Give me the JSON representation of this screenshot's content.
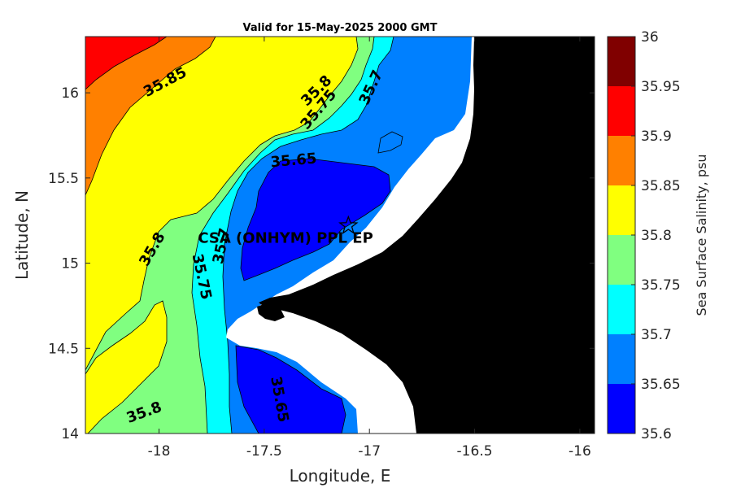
{
  "chart_data": {
    "type": "heatmap",
    "title": "Valid for 15-May-2025 2000 GMT",
    "xlabel": "Longitude, E",
    "ylabel": "Latitude, N",
    "xlim": [
      -18.35,
      -15.93
    ],
    "ylim": [
      14.0,
      16.33
    ],
    "x_ticks": [
      -18,
      -17.5,
      -17,
      -16.5,
      -16
    ],
    "x_tick_labels": [
      "-18",
      "-17.5",
      "-17",
      "-16.5",
      "-16"
    ],
    "y_ticks": [
      14,
      14.5,
      15,
      15.5,
      16
    ],
    "y_tick_labels": [
      "14",
      "14.5",
      "15",
      "15.5",
      "16"
    ],
    "grid": false,
    "colorbar": {
      "label": "Sea Surface Salinity, psu",
      "levels": [
        35.6,
        35.65,
        35.7,
        35.75,
        35.8,
        35.85,
        35.9,
        35.95,
        36
      ],
      "tick_labels": [
        "35.6",
        "35.65",
        "35.7",
        "35.75",
        "35.8",
        "35.85",
        "35.9",
        "35.95",
        "36"
      ],
      "colors": [
        "#0000ff",
        "#0080ff",
        "#00ffff",
        "#80ff80",
        "#ffff00",
        "#ff8000",
        "#ff0000",
        "#800000"
      ]
    },
    "land_color": "#000000",
    "mask_color": "#ffffff",
    "contour_labels": [
      {
        "text": "35.85",
        "lon": -17.97,
        "lat": 16.06
      },
      {
        "text": "35.8",
        "lon": -17.25,
        "lat": 16.01
      },
      {
        "text": "35.75",
        "lon": -17.24,
        "lat": 15.9
      },
      {
        "text": "35.7",
        "lon": -16.99,
        "lat": 16.03
      },
      {
        "text": "35.65",
        "lon": -17.36,
        "lat": 15.6
      },
      {
        "text": "35.8",
        "lon": -18.03,
        "lat": 15.08
      },
      {
        "text": "35.75",
        "lon": -17.8,
        "lat": 14.92
      },
      {
        "text": "35.7",
        "lon": -17.7,
        "lat": 15.1
      },
      {
        "text": "35.65",
        "lon": -17.43,
        "lat": 14.2
      },
      {
        "text": "35.8",
        "lon": -18.07,
        "lat": 14.12
      }
    ],
    "annotations": [
      {
        "text": "CSA (ONHYM) PPL EP",
        "lon": -17.1,
        "lat": 15.22,
        "marker": "pentagram"
      }
    ]
  }
}
